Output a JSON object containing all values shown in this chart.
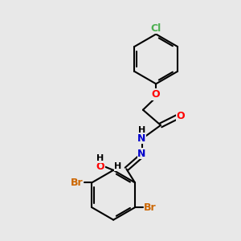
{
  "background_color": "#e8e8e8",
  "bond_color": "#000000",
  "atom_colors": {
    "Cl": "#4caf50",
    "O": "#ff0000",
    "N": "#0000cc",
    "H": "#000000",
    "Br": "#cc6600",
    "C": "#000000"
  },
  "figsize": [
    3.0,
    3.0
  ],
  "dpi": 100,
  "xlim": [
    0,
    10
  ],
  "ylim": [
    0,
    10
  ]
}
